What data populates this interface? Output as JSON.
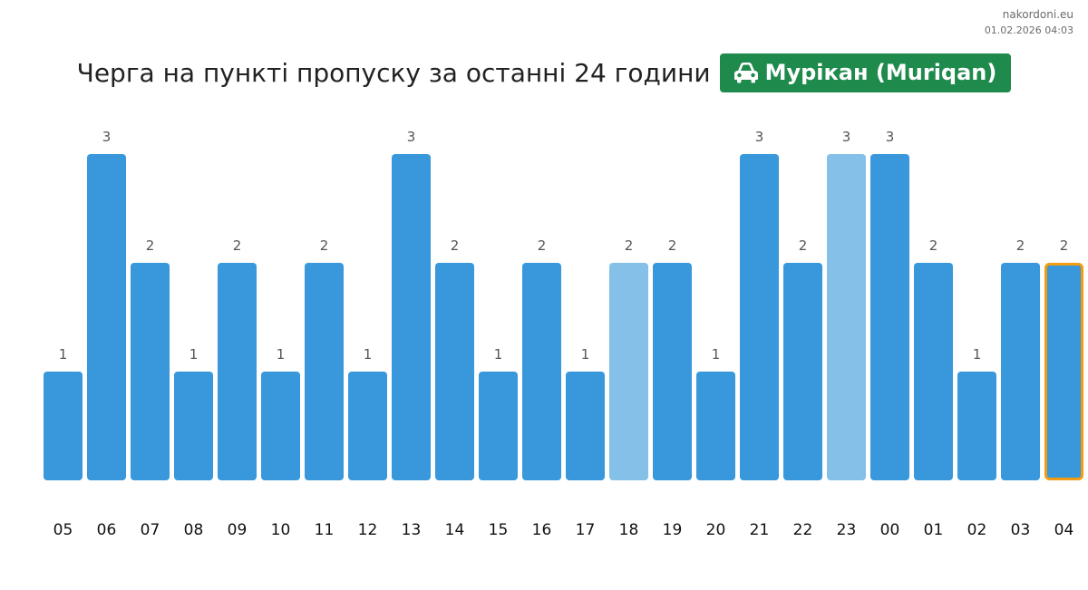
{
  "site": {
    "domain": "nakordoni.eu",
    "timestamp": "01.02.2026 04:03"
  },
  "header": {
    "title": "Черга на пункті пропуску за останні 24 години",
    "badge_label": "Мурікан (Muriqan)",
    "badge_icon": "car-icon",
    "badge_color": "#1e8a4c"
  },
  "colors": {
    "bar": "#3898db",
    "bar_light": "#85c0e9",
    "current_outline": "#f39c12"
  },
  "chart_data": {
    "type": "bar",
    "title": "Черга на пункті пропуску за останні 24 години",
    "categories": [
      "05",
      "06",
      "07",
      "08",
      "09",
      "10",
      "11",
      "12",
      "13",
      "14",
      "15",
      "16",
      "17",
      "18",
      "19",
      "20",
      "21",
      "22",
      "23",
      "00",
      "01",
      "02",
      "03",
      "04"
    ],
    "values": [
      1,
      3,
      2,
      1,
      2,
      1,
      2,
      1,
      3,
      2,
      1,
      2,
      1,
      2,
      2,
      1,
      3,
      2,
      3,
      3,
      2,
      1,
      2,
      2
    ],
    "light_categories": [
      "18",
      "23"
    ],
    "highlighted_category": "04",
    "ylim": [
      0,
      3
    ],
    "grid": false,
    "legend": "none"
  }
}
